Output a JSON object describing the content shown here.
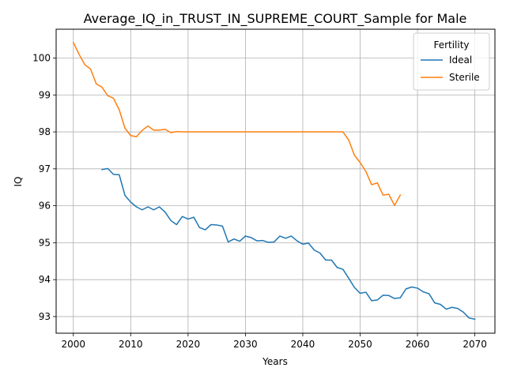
{
  "chart_data": {
    "type": "line",
    "title": "Average_IQ_in_TRUST_IN_SUPREME_COURT_Sample for Male",
    "xlabel": "Years",
    "ylabel": "IQ",
    "xlim": [
      1997,
      2073.5
    ],
    "ylim": [
      92.55,
      100.78
    ],
    "xticks": [
      2000,
      2010,
      2020,
      2030,
      2040,
      2050,
      2060,
      2070
    ],
    "yticks": [
      93,
      94,
      95,
      96,
      97,
      98,
      99,
      100
    ],
    "grid": true,
    "legend": {
      "title": "Fertility",
      "position": "top-right"
    },
    "series": [
      {
        "name": "Ideal",
        "color": "#1f77b4",
        "x": [
          2005,
          2006,
          2007,
          2008,
          2009,
          2010,
          2011,
          2012,
          2013,
          2014,
          2015,
          2016,
          2017,
          2018,
          2019,
          2020,
          2021,
          2022,
          2023,
          2024,
          2025,
          2026,
          2027,
          2028,
          2029,
          2030,
          2031,
          2032,
          2033,
          2034,
          2035,
          2036,
          2037,
          2038,
          2039,
          2040,
          2041,
          2042,
          2043,
          2044,
          2045,
          2046,
          2047,
          2048,
          2049,
          2050,
          2051,
          2052,
          2053,
          2054,
          2055,
          2056,
          2057,
          2058,
          2059,
          2060,
          2061,
          2062,
          2063,
          2064,
          2065,
          2066,
          2067,
          2068,
          2069,
          2070
        ],
        "y": [
          96.98,
          97.01,
          96.85,
          96.84,
          96.28,
          96.1,
          95.97,
          95.89,
          95.97,
          95.89,
          95.97,
          95.83,
          95.6,
          95.49,
          95.71,
          95.64,
          95.69,
          95.41,
          95.35,
          95.49,
          95.48,
          95.45,
          95.02,
          95.1,
          95.04,
          95.18,
          95.14,
          95.05,
          95.06,
          95.01,
          95.02,
          95.18,
          95.12,
          95.18,
          95.05,
          94.96,
          94.99,
          94.8,
          94.72,
          94.53,
          94.53,
          94.33,
          94.28,
          94.04,
          93.79,
          93.63,
          93.66,
          93.43,
          93.45,
          93.58,
          93.57,
          93.49,
          93.51,
          93.75,
          93.8,
          93.77,
          93.67,
          93.62,
          93.37,
          93.33,
          93.2,
          93.25,
          93.22,
          93.12,
          92.96,
          92.93
        ]
      },
      {
        "name": "Sterile",
        "color": "#ff7f0e",
        "x": [
          2000,
          2001,
          2002,
          2003,
          2004,
          2005,
          2006,
          2007,
          2008,
          2009,
          2010,
          2011,
          2012,
          2013,
          2014,
          2015,
          2016,
          2017,
          2018,
          2019,
          2020,
          2021,
          2022,
          2023,
          2024,
          2025,
          2026,
          2027,
          2028,
          2029,
          2030,
          2031,
          2032,
          2033,
          2034,
          2035,
          2036,
          2037,
          2038,
          2039,
          2040,
          2041,
          2042,
          2043,
          2044,
          2045,
          2046,
          2047,
          2048,
          2049,
          2050,
          2051,
          2052,
          2053,
          2054,
          2055,
          2056,
          2057
        ],
        "y": [
          100.42,
          100.1,
          99.82,
          99.7,
          99.3,
          99.21,
          98.98,
          98.91,
          98.6,
          98.1,
          97.9,
          97.87,
          98.04,
          98.16,
          98.05,
          98.05,
          98.07,
          97.98,
          98.01,
          98.0,
          98.0,
          98.0,
          98.0,
          98.0,
          98.0,
          98.0,
          98.0,
          98.0,
          98.0,
          98.0,
          98.0,
          98.0,
          98.0,
          98.0,
          98.0,
          98.0,
          98.0,
          98.0,
          98.0,
          98.0,
          98.0,
          98.0,
          98.0,
          98.0,
          98.0,
          98.0,
          98.0,
          98.0,
          97.78,
          97.37,
          97.17,
          96.93,
          96.57,
          96.62,
          96.29,
          96.31,
          96.01,
          96.29
        ]
      }
    ]
  }
}
